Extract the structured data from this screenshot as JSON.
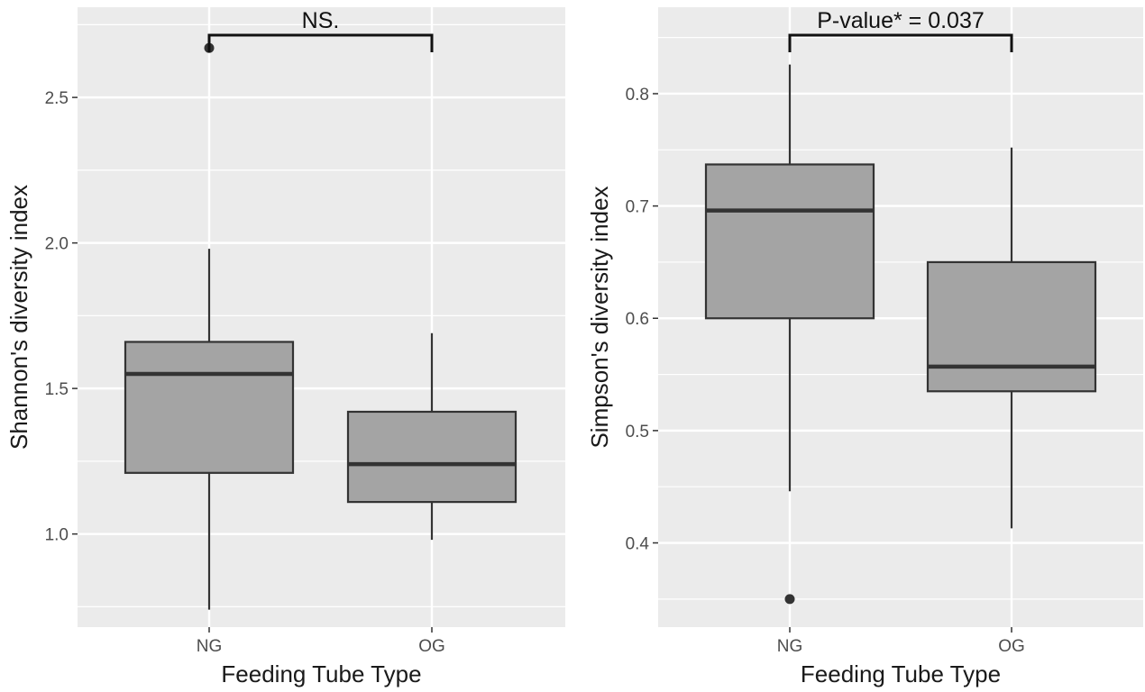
{
  "chart_data": [
    {
      "type": "box",
      "xlabel": "Feeding Tube Type",
      "ylabel": "Shannon's diversity index",
      "categories": [
        "NG",
        "OG"
      ],
      "ylim": [
        0.68,
        2.81
      ],
      "yticks": [
        1.0,
        1.5,
        2.0,
        2.5
      ],
      "ytick_labels": [
        "1.0",
        "1.5",
        "2.0",
        "2.5"
      ],
      "boxes": [
        {
          "category": "NG",
          "whisker_low": 0.74,
          "q1": 1.21,
          "median": 1.55,
          "q3": 1.66,
          "whisker_high": 1.98,
          "outliers": [
            2.67
          ]
        },
        {
          "category": "OG",
          "whisker_low": 0.98,
          "q1": 1.11,
          "median": 1.24,
          "q3": 1.42,
          "whisker_high": 1.69,
          "outliers": []
        }
      ],
      "annotation": "NS.",
      "grid": true
    },
    {
      "type": "box",
      "xlabel": "Feeding Tube Type",
      "ylabel": "Simpson's diversity index",
      "categories": [
        "NG",
        "OG"
      ],
      "ylim": [
        0.325,
        0.877
      ],
      "yticks": [
        0.4,
        0.5,
        0.6,
        0.7,
        0.8
      ],
      "ytick_labels": [
        "0.4",
        "0.5",
        "0.6",
        "0.7",
        "0.8"
      ],
      "boxes": [
        {
          "category": "NG",
          "whisker_low": 0.446,
          "q1": 0.6,
          "median": 0.696,
          "q3": 0.737,
          "whisker_high": 0.826,
          "outliers": [
            0.35
          ]
        },
        {
          "category": "OG",
          "whisker_low": 0.413,
          "q1": 0.535,
          "median": 0.557,
          "q3": 0.65,
          "whisker_high": 0.752,
          "outliers": []
        }
      ],
      "annotation": "P-value* = 0.037",
      "grid": true
    }
  ],
  "colors": {
    "panel_background": "#ebebeb",
    "grid": "#ffffff",
    "box_fill": "#a4a4a4",
    "box_line": "#333333",
    "tick_text": "#4d4d4d"
  }
}
